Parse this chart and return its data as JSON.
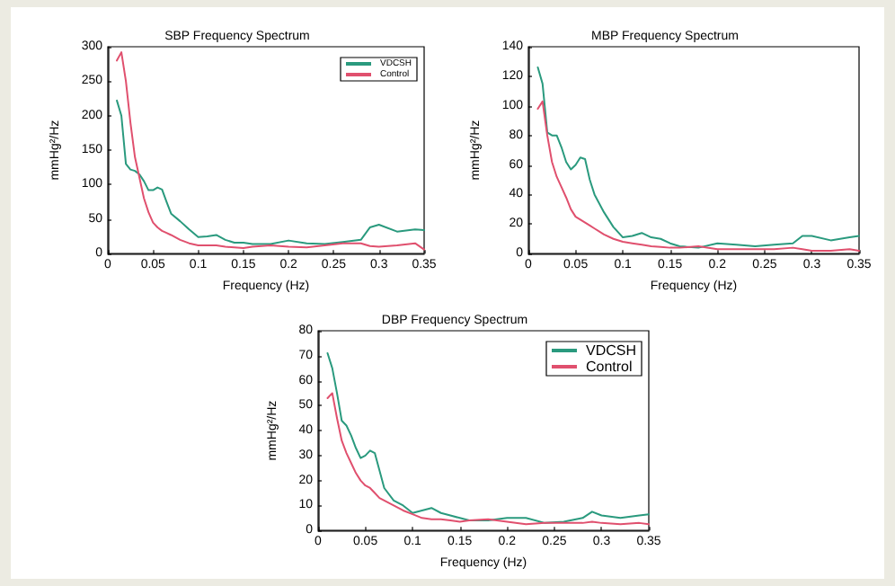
{
  "chart_data": [
    {
      "type": "line",
      "title": "SBP Frequency Spectrum",
      "xlabel": "Frequency (Hz)",
      "ylabel": "mmHg²/Hz",
      "x": [
        0.01,
        0.015,
        0.02,
        0.025,
        0.03,
        0.035,
        0.04,
        0.045,
        0.05,
        0.055,
        0.06,
        0.065,
        0.07,
        0.08,
        0.09,
        0.1,
        0.11,
        0.12,
        0.13,
        0.14,
        0.15,
        0.16,
        0.18,
        0.2,
        0.22,
        0.24,
        0.26,
        0.28,
        0.29,
        0.3,
        0.32,
        0.34,
        0.35
      ],
      "series": [
        {
          "name": "VDCSH",
          "color": "#2a9a7e",
          "values": [
            222,
            200,
            130,
            122,
            120,
            115,
            105,
            92,
            92,
            96,
            93,
            75,
            58,
            47,
            35,
            24,
            25,
            27,
            20,
            16,
            16,
            14,
            14,
            19,
            15,
            14,
            17,
            20,
            38,
            42,
            32,
            35,
            34
          ]
        },
        {
          "name": "Control",
          "color": "#e0506e",
          "values": [
            280,
            292,
            250,
            190,
            140,
            110,
            80,
            60,
            45,
            38,
            33,
            30,
            27,
            20,
            15,
            12,
            12,
            12,
            10,
            9,
            8,
            10,
            12,
            10,
            9,
            12,
            15,
            15,
            11,
            10,
            12,
            15,
            6
          ]
        }
      ],
      "xlim": [
        0,
        0.35
      ],
      "xticks": [
        0,
        0.05,
        0.1,
        0.15,
        0.2,
        0.25,
        0.3,
        0.35
      ],
      "ylim": [
        0,
        300
      ],
      "yticks": [
        0,
        50,
        100,
        150,
        200,
        250,
        300
      ],
      "legend": "top right",
      "grid": false,
      "marker": "none",
      "line_style": "solid"
    },
    {
      "type": "line",
      "title": "MBP Frequency Spectrum",
      "xlabel": "Frequency (Hz)",
      "ylabel": "mmHg²/Hz",
      "x": [
        0.01,
        0.015,
        0.02,
        0.025,
        0.03,
        0.035,
        0.04,
        0.045,
        0.05,
        0.055,
        0.06,
        0.065,
        0.07,
        0.08,
        0.09,
        0.1,
        0.11,
        0.12,
        0.13,
        0.14,
        0.15,
        0.16,
        0.18,
        0.2,
        0.22,
        0.24,
        0.26,
        0.28,
        0.29,
        0.3,
        0.32,
        0.34,
        0.35
      ],
      "series": [
        {
          "color": "#2a9a7e",
          "values": [
            126,
            115,
            82,
            80,
            80,
            72,
            62,
            57,
            60,
            65,
            64,
            50,
            40,
            28,
            18,
            11,
            12,
            14,
            11,
            10,
            7,
            5,
            4,
            7,
            6,
            5,
            6,
            7,
            12,
            12,
            9,
            11,
            12
          ]
        },
        {
          "color": "#e0506e",
          "values": [
            98,
            103,
            80,
            62,
            52,
            45,
            38,
            30,
            25,
            23,
            21,
            19,
            17,
            13,
            10,
            8,
            7,
            6,
            5,
            4.5,
            4,
            4,
            5,
            3,
            3,
            3,
            3,
            4,
            3,
            2,
            2,
            3,
            2
          ]
        }
      ],
      "xlim": [
        0,
        0.35
      ],
      "xticks": [
        0,
        0.05,
        0.1,
        0.15,
        0.2,
        0.25,
        0.3,
        0.35
      ],
      "ylim": [
        0,
        140
      ],
      "yticks": [
        0,
        20,
        40,
        60,
        80,
        100,
        120,
        140
      ],
      "legend": false,
      "grid": false,
      "marker": "none",
      "line_style": "solid"
    },
    {
      "type": "line",
      "title": "DBP Frequency Spectrum",
      "xlabel": "Frequency (Hz)",
      "ylabel": "mmHg²/Hz",
      "x": [
        0.01,
        0.015,
        0.02,
        0.025,
        0.03,
        0.035,
        0.04,
        0.045,
        0.05,
        0.055,
        0.06,
        0.065,
        0.07,
        0.08,
        0.09,
        0.1,
        0.11,
        0.12,
        0.13,
        0.14,
        0.15,
        0.16,
        0.18,
        0.2,
        0.22,
        0.24,
        0.26,
        0.28,
        0.29,
        0.3,
        0.32,
        0.34,
        0.35
      ],
      "series": [
        {
          "name": "VDCSH",
          "color": "#2a9a7e",
          "values": [
            71,
            65,
            55,
            44,
            42,
            38,
            33,
            29,
            30,
            32,
            31,
            24,
            17,
            12,
            10,
            7,
            8,
            9,
            7,
            6,
            5,
            4,
            4,
            5,
            5,
            3,
            3.5,
            5,
            7.5,
            6,
            5,
            6,
            6.5
          ]
        },
        {
          "name": "Control",
          "color": "#e0506e",
          "values": [
            53,
            55,
            45,
            36,
            31,
            27,
            23,
            20,
            18,
            17,
            15,
            13,
            12,
            10,
            8,
            6.5,
            5,
            4.5,
            4.5,
            4,
            3.5,
            4,
            4.5,
            3.5,
            2.5,
            3,
            3,
            3,
            3.5,
            3,
            2.5,
            3,
            2.5
          ]
        }
      ],
      "xlim": [
        0,
        0.35
      ],
      "xticks": [
        0,
        0.05,
        0.1,
        0.15,
        0.2,
        0.25,
        0.3,
        0.35
      ],
      "ylim": [
        0,
        80
      ],
      "yticks": [
        0,
        10,
        20,
        30,
        40,
        50,
        60,
        70,
        80
      ],
      "legend": "top right",
      "grid": false,
      "marker": "none",
      "line_style": "solid"
    }
  ]
}
